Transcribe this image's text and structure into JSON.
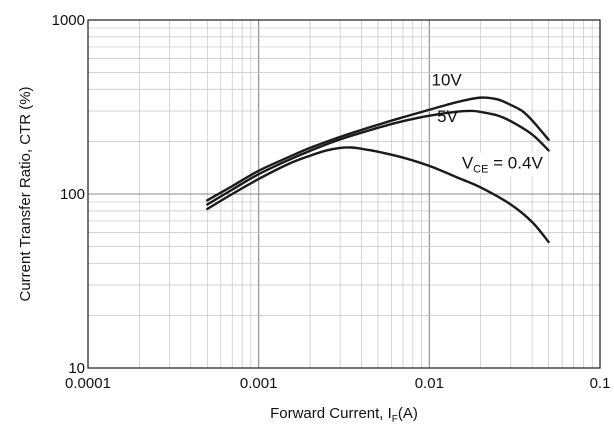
{
  "chart_data": {
    "type": "line",
    "x_scale": "log",
    "y_scale": "log",
    "xlim": [
      0.0001,
      0.1
    ],
    "ylim": [
      10,
      1000
    ],
    "x_ticks": [
      {
        "value": 0.0001,
        "label": "0.0001"
      },
      {
        "value": 0.001,
        "label": "0.001"
      },
      {
        "value": 0.01,
        "label": "0.01"
      },
      {
        "value": 0.1,
        "label": "0.1"
      }
    ],
    "y_ticks": [
      {
        "value": 10,
        "label": "10"
      },
      {
        "value": 100,
        "label": "100"
      },
      {
        "value": 1000,
        "label": "1000"
      }
    ],
    "xlabel": {
      "main": "Forward Current, I",
      "sub": "F",
      "tail": "(A)"
    },
    "ylabel": "Current Transfer Ratio, CTR (%)",
    "grid": true,
    "line_color": "#1a1a1a",
    "grid_color": "#c4c4c4",
    "series": [
      {
        "id": "vce-10v",
        "label": {
          "main": "10V"
        },
        "label_at": {
          "x": 0.0103,
          "y": 420
        },
        "points": [
          [
            0.0005,
            92
          ],
          [
            0.0007,
            111
          ],
          [
            0.001,
            136
          ],
          [
            0.0015,
            163
          ],
          [
            0.002,
            184
          ],
          [
            0.003,
            213
          ],
          [
            0.005,
            250
          ],
          [
            0.007,
            276
          ],
          [
            0.01,
            305
          ],
          [
            0.015,
            340
          ],
          [
            0.02,
            358
          ],
          [
            0.025,
            350
          ],
          [
            0.03,
            325
          ],
          [
            0.035,
            300
          ],
          [
            0.04,
            265
          ],
          [
            0.05,
            205
          ]
        ]
      },
      {
        "id": "vce-5v",
        "label": {
          "main": "5V"
        },
        "label_at": {
          "x": 0.0111,
          "y": 260
        },
        "points": [
          [
            0.0005,
            87
          ],
          [
            0.0007,
            106
          ],
          [
            0.001,
            130
          ],
          [
            0.0015,
            157
          ],
          [
            0.002,
            177
          ],
          [
            0.003,
            206
          ],
          [
            0.005,
            240
          ],
          [
            0.007,
            262
          ],
          [
            0.01,
            282
          ],
          [
            0.015,
            298
          ],
          [
            0.018,
            300
          ],
          [
            0.02,
            296
          ],
          [
            0.025,
            283
          ],
          [
            0.03,
            262
          ],
          [
            0.04,
            220
          ],
          [
            0.05,
            178
          ]
        ]
      },
      {
        "id": "vce-0-4v",
        "label": {
          "main": "V",
          "sub": "CE",
          "tail": " = 0.4V"
        },
        "label_at": {
          "x": 0.0155,
          "y": 140
        },
        "points": [
          [
            0.0005,
            82
          ],
          [
            0.0007,
            100
          ],
          [
            0.001,
            122
          ],
          [
            0.0015,
            149
          ],
          [
            0.002,
            166
          ],
          [
            0.0025,
            178
          ],
          [
            0.003,
            184
          ],
          [
            0.0035,
            185
          ],
          [
            0.004,
            182
          ],
          [
            0.005,
            175
          ],
          [
            0.007,
            162
          ],
          [
            0.01,
            145
          ],
          [
            0.015,
            123
          ],
          [
            0.02,
            109
          ],
          [
            0.03,
            87
          ],
          [
            0.04,
            69
          ],
          [
            0.05,
            53
          ]
        ]
      }
    ]
  }
}
